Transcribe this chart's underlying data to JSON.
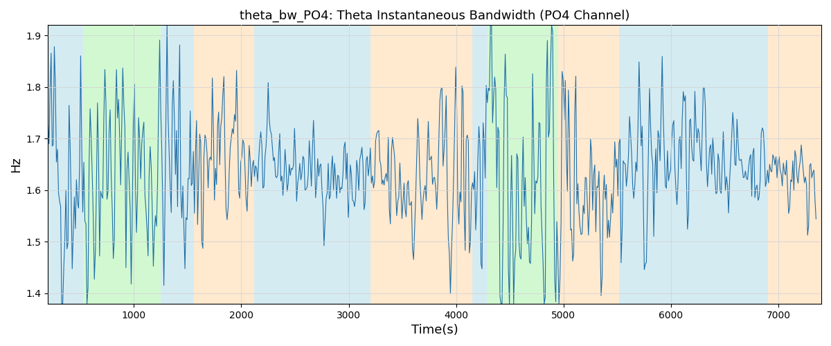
{
  "title": "theta_bw_PO4: Theta Instantaneous Bandwidth (PO4 Channel)",
  "xlabel": "Time(s)",
  "ylabel": "Hz",
  "ylim": [
    1.38,
    1.92
  ],
  "xlim": [
    200,
    7400
  ],
  "yticks": [
    1.4,
    1.5,
    1.6,
    1.7,
    1.8,
    1.9
  ],
  "xticks": [
    1000,
    2000,
    3000,
    4000,
    5000,
    6000,
    7000
  ],
  "line_color": "#1f6fa8",
  "line_width": 0.8,
  "bg_bands": [
    {
      "xstart": 200,
      "xend": 530,
      "color": "#add8e6",
      "alpha": 0.5
    },
    {
      "xstart": 530,
      "xend": 1250,
      "color": "#90ee90",
      "alpha": 0.4
    },
    {
      "xstart": 1250,
      "xend": 1560,
      "color": "#add8e6",
      "alpha": 0.5
    },
    {
      "xstart": 1560,
      "xend": 2120,
      "color": "#ffd8a8",
      "alpha": 0.55
    },
    {
      "xstart": 2120,
      "xend": 2800,
      "color": "#add8e6",
      "alpha": 0.5
    },
    {
      "xstart": 2800,
      "xend": 3200,
      "color": "#add8e6",
      "alpha": 0.5
    },
    {
      "xstart": 3200,
      "xend": 4150,
      "color": "#ffd8a8",
      "alpha": 0.55
    },
    {
      "xstart": 4150,
      "xend": 4290,
      "color": "#add8e6",
      "alpha": 0.5
    },
    {
      "xstart": 4290,
      "xend": 4950,
      "color": "#90ee90",
      "alpha": 0.4
    },
    {
      "xstart": 4950,
      "xend": 5520,
      "color": "#ffd8a8",
      "alpha": 0.55
    },
    {
      "xstart": 5520,
      "xend": 6480,
      "color": "#add8e6",
      "alpha": 0.5
    },
    {
      "xstart": 6480,
      "xend": 6900,
      "color": "#add8e6",
      "alpha": 0.5
    },
    {
      "xstart": 6900,
      "xend": 7400,
      "color": "#ffd8a8",
      "alpha": 0.55
    }
  ],
  "seed": 42,
  "n_points": 730,
  "t_start": 200,
  "t_end": 7350,
  "signal_mean": 1.635,
  "signal_std": 0.065,
  "noise_std": 0.09
}
